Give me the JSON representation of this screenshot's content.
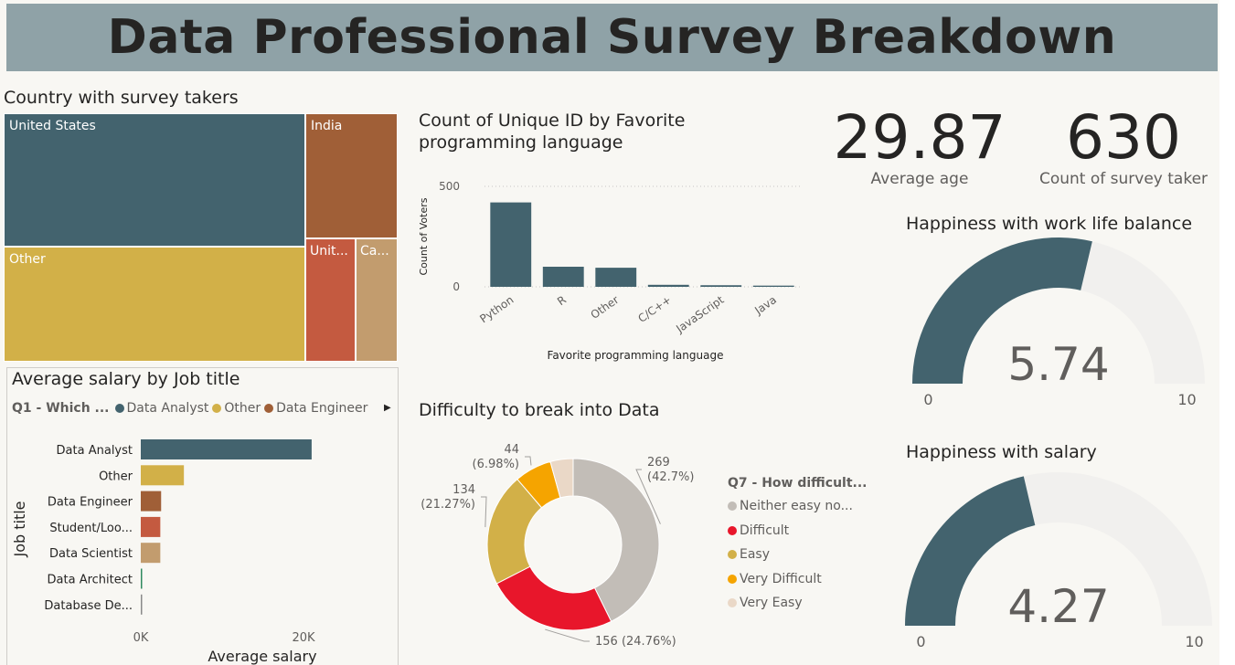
{
  "report": {
    "title": "Data Professional Survey Breakdown"
  },
  "treemap": {
    "title": "Country with survey takers",
    "items": [
      {
        "label": "United States",
        "color": "#43636e"
      },
      {
        "label": "India",
        "color": "#a05f37"
      },
      {
        "label": "Other",
        "color": "#d2b048"
      },
      {
        "label": "Unit...",
        "color": "#c45a40"
      },
      {
        "label": "Ca...",
        "color": "#c29c6e"
      }
    ]
  },
  "kpis": {
    "avg_age": {
      "value": "29.87",
      "label": "Average age"
    },
    "count": {
      "value": "630",
      "label": "Count of survey taker"
    }
  },
  "gauge_worklife": {
    "title": "Happiness with work life balance",
    "value": 5.74,
    "value_text": "5.74",
    "min_text": "0",
    "max_text": "10",
    "fill": "#43636e",
    "track": "#f1f0ee"
  },
  "gauge_salary": {
    "title": "Happiness with salary",
    "value": 4.27,
    "value_text": "4.27",
    "min_text": "0",
    "max_text": "10",
    "fill": "#43636e",
    "track": "#f1f0ee"
  },
  "lang_chart": {
    "title_line1": "Count of Unique ID by Favorite",
    "title_line2": "programming language",
    "xlabel": "Favorite programming language",
    "ylabel": "Count of Voters",
    "color": "#43636e"
  },
  "salary_chart": {
    "title": "Average salary by Job title",
    "legend_title": "Q1 - Which ...",
    "legend": [
      {
        "name": "Data Analyst",
        "color": "#43636e"
      },
      {
        "name": "Other",
        "color": "#d2b048"
      },
      {
        "name": "Data Engineer",
        "color": "#a05f37"
      }
    ],
    "ylabel": "Job title",
    "xlabel": "Average salary"
  },
  "donut_chart": {
    "title": "Difficulty to break into Data",
    "legend_title": "Q7 - How difficult..."
  },
  "chart_data": [
    {
      "type": "bar",
      "categories": [
        "Python",
        "R",
        "Other",
        "C/C++",
        "JavaScript",
        "Java"
      ],
      "values": [
        420,
        100,
        95,
        10,
        8,
        6
      ],
      "ylim": [
        0,
        600
      ],
      "yticks": [
        "0",
        "500"
      ],
      "xlabel": "Favorite programming language",
      "ylabel": "Count of Voters",
      "grid": true
    },
    {
      "type": "bar",
      "orientation": "horizontal",
      "categories": [
        "Data Analyst",
        "Other",
        "Data Engineer",
        "Student/Loo...",
        "Data Scientist",
        "Data Architect",
        "Database De..."
      ],
      "values": [
        21000,
        5300,
        2500,
        2400,
        2400,
        150,
        100
      ],
      "colors": [
        "#43636e",
        "#d2b048",
        "#a05f37",
        "#c45a40",
        "#c29c6e",
        "#2f8a5f",
        "#8a8a8a"
      ],
      "xlim": [
        0,
        25000
      ],
      "xticks": [
        "0K",
        "20K"
      ],
      "xlabel": "Average salary",
      "ylabel": "Job title"
    },
    {
      "type": "pie",
      "style": "donut",
      "slices": [
        {
          "name": "Neither easy no...",
          "value": 269,
          "label_top": "269",
          "label_bottom": "(42.7%)",
          "color": "#c2bdb7"
        },
        {
          "name": "Difficult",
          "value": 156,
          "label_top": "156 (24.76%)",
          "label_bottom": "",
          "color": "#e8162b"
        },
        {
          "name": "Easy",
          "value": 134,
          "label_top": "134",
          "label_bottom": "(21.27%)",
          "color": "#d2b048"
        },
        {
          "name": "Very Difficult",
          "value": 44,
          "label_top": "44",
          "label_bottom": "(6.98%)",
          "color": "#f5a400"
        },
        {
          "name": "Very Easy",
          "value": 27,
          "label_top": "",
          "label_bottom": "",
          "color": "#ead8c7"
        }
      ]
    }
  ]
}
